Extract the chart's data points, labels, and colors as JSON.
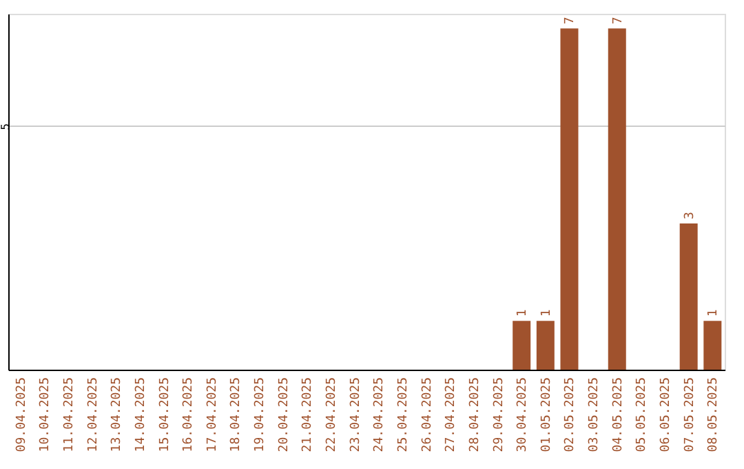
{
  "chart_data": {
    "type": "bar",
    "categories": [
      "09.04.2025",
      "10.04.2025",
      "11.04.2025",
      "12.04.2025",
      "13.04.2025",
      "14.04.2025",
      "15.04.2025",
      "16.04.2025",
      "17.04.2025",
      "18.04.2025",
      "19.04.2025",
      "20.04.2025",
      "21.04.2025",
      "22.04.2025",
      "23.04.2025",
      "24.04.2025",
      "25.04.2025",
      "26.04.2025",
      "27.04.2025",
      "28.04.2025",
      "29.04.2025",
      "30.04.2025",
      "01.05.2025",
      "02.05.2025",
      "03.05.2025",
      "04.05.2025",
      "05.05.2025",
      "06.05.2025",
      "07.05.2025",
      "08.05.2025"
    ],
    "values": [
      null,
      null,
      null,
      null,
      null,
      null,
      null,
      null,
      null,
      null,
      null,
      null,
      null,
      null,
      null,
      null,
      null,
      null,
      null,
      null,
      null,
      1,
      1,
      7,
      null,
      7,
      null,
      null,
      3,
      1
    ],
    "color": "#a0522d",
    "ylim": [
      0,
      7.3
    ],
    "yticks": [
      5
    ],
    "grid": "y",
    "data_labels": true
  }
}
